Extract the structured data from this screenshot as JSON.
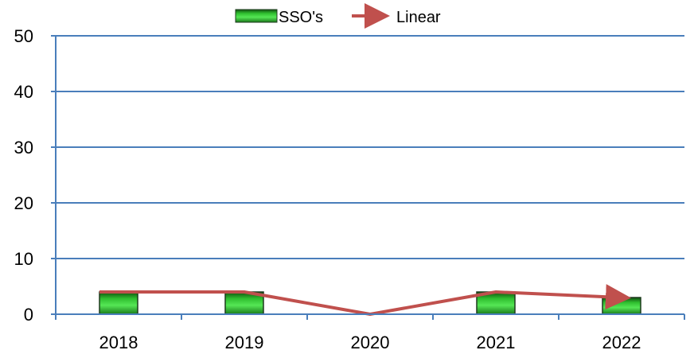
{
  "chart_data": {
    "type": "bar",
    "categories": [
      "2018",
      "2019",
      "2020",
      "2021",
      "2022"
    ],
    "series": [
      {
        "name": "SSO's",
        "type": "bar",
        "values": [
          4,
          4,
          0,
          4,
          3
        ]
      },
      {
        "name": "Linear",
        "type": "line",
        "values": [
          4,
          4,
          0,
          4,
          3
        ]
      }
    ],
    "ylim": [
      0,
      50
    ],
    "yticks": [
      "0",
      "10",
      "20",
      "30",
      "40",
      "50"
    ],
    "grid": true,
    "legend": "top-center",
    "colors": {
      "bar_fill": "#2fbf2f",
      "bar_edge": "#1e3a1e",
      "line": "#c0504d",
      "grid": "#4a7ebb",
      "axis": "#4a7ebb"
    }
  }
}
